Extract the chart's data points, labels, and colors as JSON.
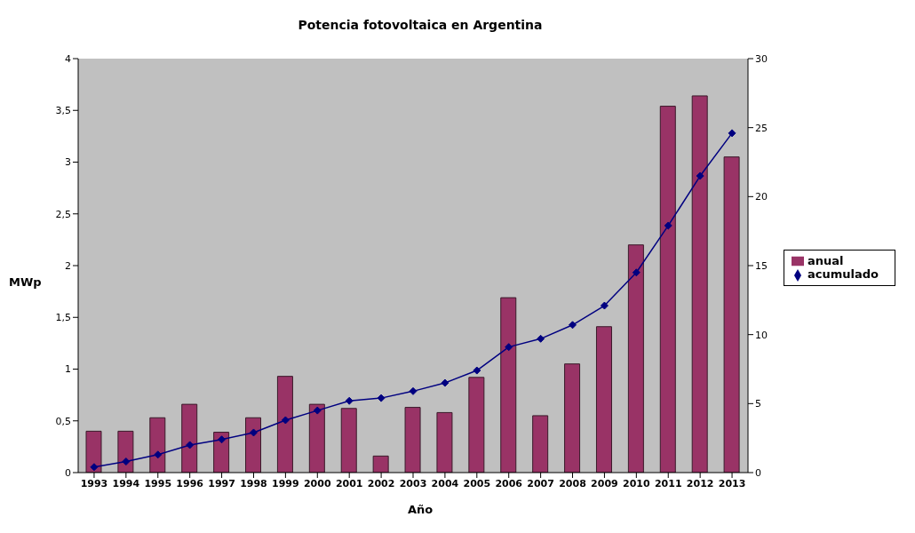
{
  "chart_data": {
    "type": "bar",
    "title": "Potencia fotovoltaica en Argentina",
    "xlabel": "Año",
    "ylabel": "MWp",
    "categories": [
      "1993",
      "1994",
      "1995",
      "1996",
      "1997",
      "1998",
      "1999",
      "2000",
      "2001",
      "2002",
      "2003",
      "2004",
      "2005",
      "2006",
      "2007",
      "2008",
      "2009",
      "2010",
      "2011",
      "2012",
      "2013"
    ],
    "series": [
      {
        "name": "anual",
        "color": "#993366",
        "values": [
          0.4,
          0.4,
          0.53,
          0.66,
          0.39,
          0.53,
          0.93,
          0.66,
          0.62,
          0.16,
          0.63,
          0.58,
          0.92,
          1.69,
          0.55,
          1.05,
          1.41,
          2.2,
          3.54,
          3.64,
          3.05
        ]
      },
      {
        "name": "acumulado",
        "type": "line",
        "axis": "y2",
        "color": "#000080",
        "marker": "diamond",
        "values": [
          0.4,
          0.8,
          1.3,
          2.0,
          2.4,
          2.9,
          3.8,
          4.5,
          5.2,
          5.4,
          5.9,
          6.5,
          7.4,
          9.1,
          9.7,
          10.7,
          12.1,
          14.5,
          17.9,
          21.5,
          24.6
        ]
      }
    ],
    "ylim": [
      0,
      4
    ],
    "yticks": [
      0,
      {
        "value": 0.5,
        "label": "0,5"
      },
      1,
      {
        "value": 1.5,
        "label": "1,5"
      },
      2,
      {
        "value": 2.5,
        "label": "2,5"
      },
      3,
      {
        "value": 3.5,
        "label": "3,5"
      },
      4
    ],
    "y2lim": [
      0,
      30
    ],
    "y2ticks": [
      0,
      5,
      10,
      15,
      20,
      25,
      30
    ],
    "grid": false,
    "legend": "right"
  }
}
